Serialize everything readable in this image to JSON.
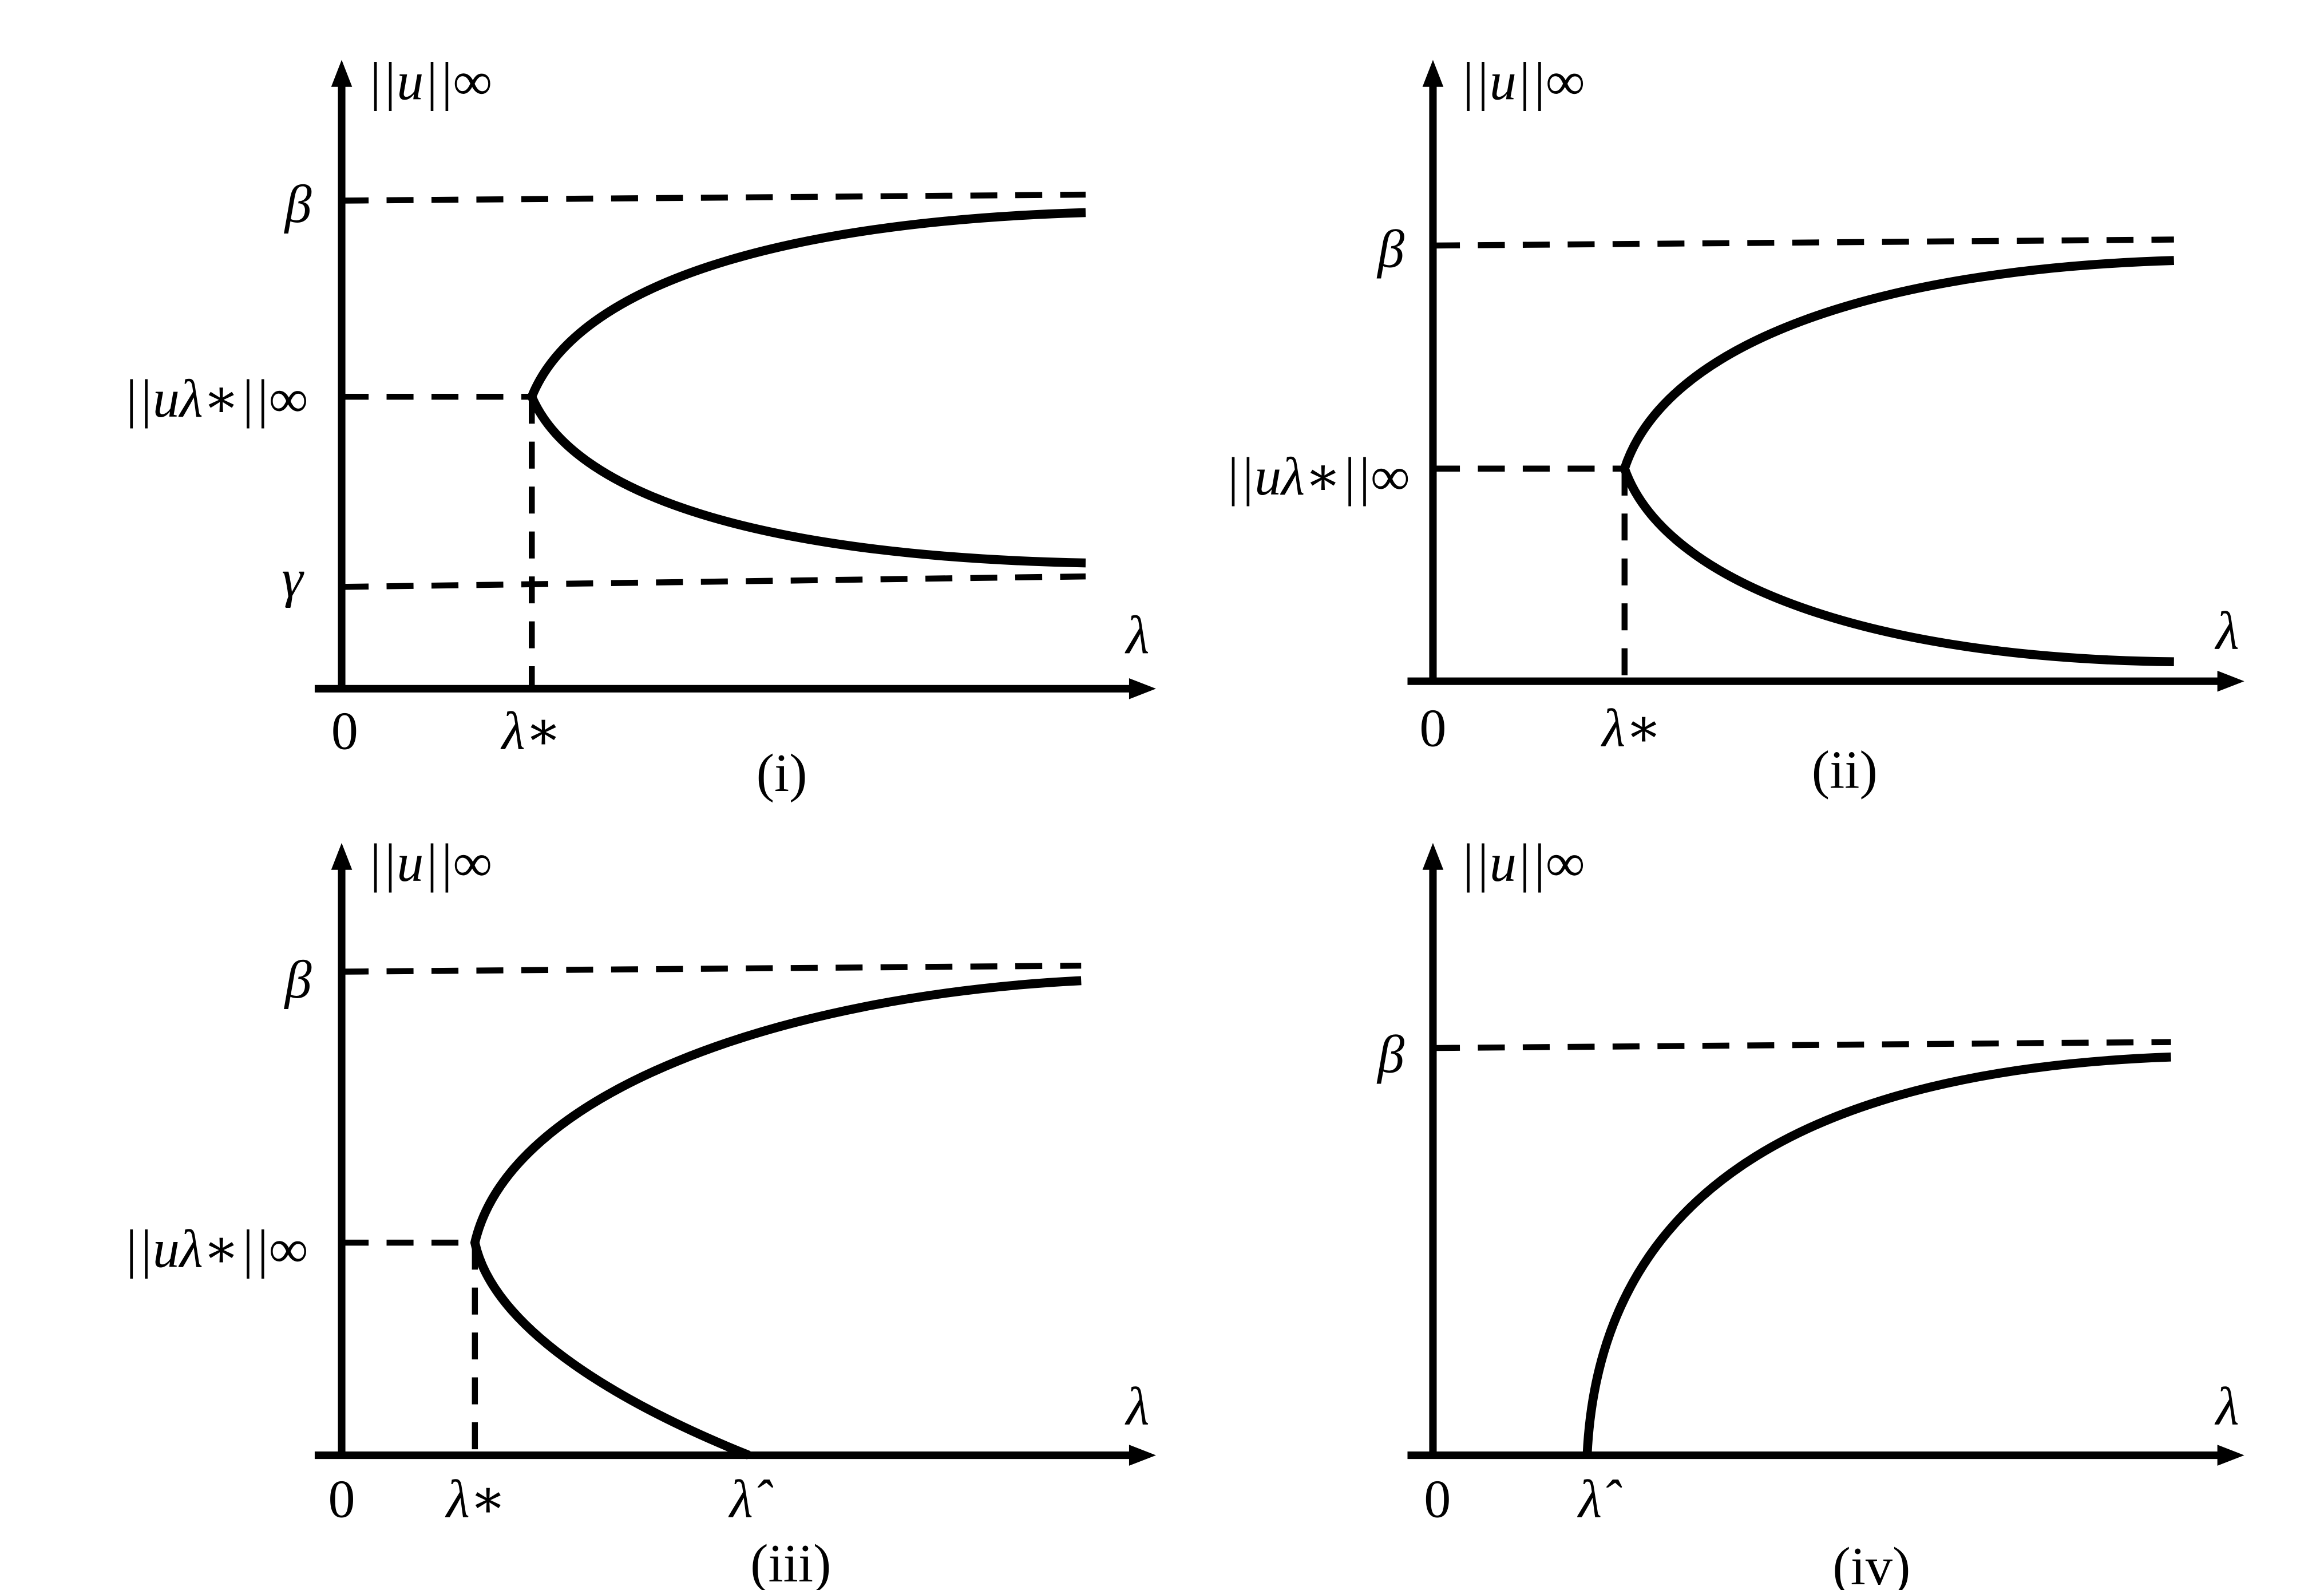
{
  "panels": [
    {
      "caption": "(i)",
      "y_axis": "||u||∞",
      "x_axis": "λ",
      "origin": "0",
      "levels": [
        "β",
        "||uλ∗||∞",
        "γ"
      ],
      "x_marks": [
        "λ∗"
      ]
    },
    {
      "caption": "(ii)",
      "y_axis": "||u||∞",
      "x_axis": "λ",
      "origin": "0",
      "levels": [
        "β",
        "||uλ∗||∞"
      ],
      "x_marks": [
        "λ∗"
      ]
    },
    {
      "caption": "(iii)",
      "y_axis": "||u||∞",
      "x_axis": "λ",
      "origin": "0",
      "levels": [
        "β",
        "||uλ∗||∞"
      ],
      "x_marks": [
        "λ∗",
        "λ̂"
      ]
    },
    {
      "caption": "(iv)",
      "y_axis": "||u||∞",
      "x_axis": "λ",
      "origin": "0",
      "levels": [
        "β"
      ],
      "x_marks": [
        "λ̂"
      ]
    }
  ]
}
